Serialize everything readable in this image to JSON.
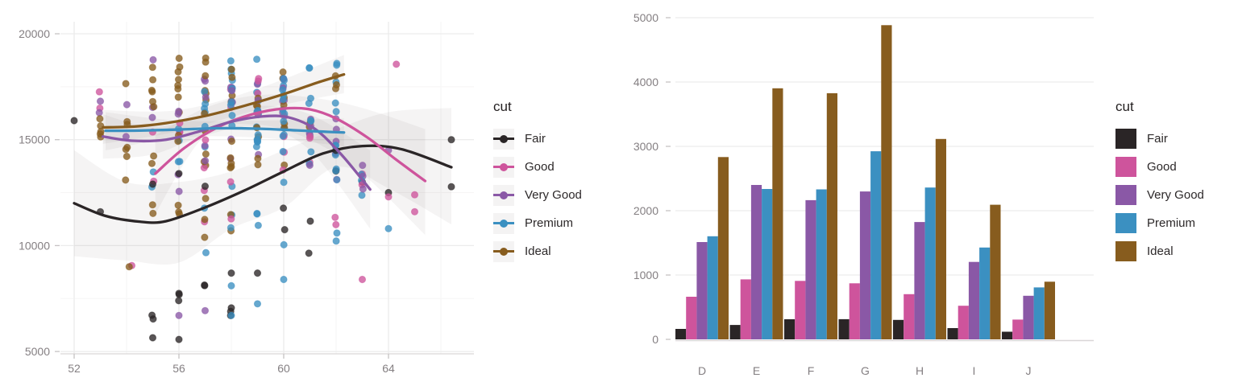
{
  "legend": {
    "title": "cut",
    "items": [
      {
        "label": "Fair",
        "color": "#2a2526"
      },
      {
        "label": "Good",
        "color": "#ce549c"
      },
      {
        "label": "Very Good",
        "color": "#8a58a6"
      },
      {
        "label": "Premium",
        "color": "#3b90c1"
      },
      {
        "label": "Ideal",
        "color": "#875c1e"
      }
    ]
  },
  "colors": {
    "grid": "#ececec",
    "grid_minor": "#f6f5f5",
    "axis_text": "#847f82",
    "axis_line": "#d9d6d7",
    "tick": "#c6c2c4",
    "ribbon": "#6b6668"
  },
  "chart_data": [
    {
      "type": "scatter",
      "title": "",
      "xlabel": "",
      "ylabel": "",
      "legend_title": "cut",
      "legend_position": "right",
      "grid": true,
      "x_ticks": [
        52,
        56,
        60,
        64
      ],
      "x_minor_ticks": [
        54,
        58,
        62,
        66
      ],
      "y_ticks": [
        5000,
        10000,
        15000,
        20000
      ],
      "y_minor_ticks": [
        7500,
        12500,
        17500
      ],
      "xlim": [
        51.5,
        66.9
      ],
      "ylim": [
        4800,
        20500
      ],
      "cuts": [
        "Fair",
        "Good",
        "Very Good",
        "Premium",
        "Ideal"
      ],
      "smooth_lines": {
        "Fair": [
          [
            52,
            12000
          ],
          [
            53.2,
            11400
          ],
          [
            54.5,
            11130
          ],
          [
            55.5,
            11150
          ],
          [
            57,
            11800
          ],
          [
            58.5,
            12600
          ],
          [
            60,
            13500
          ],
          [
            61.5,
            14350
          ],
          [
            63,
            14700
          ],
          [
            64.5,
            14550
          ],
          [
            66.4,
            13700
          ]
        ],
        "Good": [
          [
            55.1,
            13400
          ],
          [
            56.2,
            14600
          ],
          [
            57.5,
            15600
          ],
          [
            58.8,
            16200
          ],
          [
            60,
            16470
          ],
          [
            61,
            16430
          ],
          [
            62,
            16000
          ],
          [
            63.2,
            15100
          ],
          [
            64.3,
            14050
          ],
          [
            65.4,
            13050
          ]
        ],
        "Very Good": [
          [
            53.1,
            15150
          ],
          [
            54.2,
            14950
          ],
          [
            55.5,
            15000
          ],
          [
            56.8,
            15400
          ],
          [
            58,
            15850
          ],
          [
            59.2,
            16100
          ],
          [
            60.2,
            16050
          ],
          [
            61.2,
            15500
          ],
          [
            62.2,
            14300
          ],
          [
            63.3,
            12650
          ]
        ],
        "Premium": [
          [
            53.2,
            15420
          ],
          [
            54.5,
            15430
          ],
          [
            56,
            15480
          ],
          [
            57.5,
            15540
          ],
          [
            59,
            15520
          ],
          [
            60.5,
            15440
          ],
          [
            61.5,
            15380
          ],
          [
            62.3,
            15340
          ]
        ],
        "Ideal": [
          [
            53.1,
            15580
          ],
          [
            54.3,
            15620
          ],
          [
            55.5,
            15780
          ],
          [
            57,
            16120
          ],
          [
            58.5,
            16600
          ],
          [
            60,
            17150
          ],
          [
            61.3,
            17700
          ],
          [
            62.3,
            18080
          ]
        ]
      },
      "ribbons": [
        {
          "series": "Fair",
          "upper": [
            [
              52,
              14500
            ],
            [
              54,
              13000
            ],
            [
              56,
              13000
            ],
            [
              58,
              13500
            ],
            [
              60,
              14500
            ],
            [
              62,
              15500
            ],
            [
              64,
              16300
            ],
            [
              66.4,
              16500
            ]
          ],
          "lower": [
            [
              52,
              9500
            ],
            [
              54,
              9300
            ],
            [
              56,
              9200
            ],
            [
              58,
              10800
            ],
            [
              60,
              11800
            ],
            [
              62,
              13700
            ],
            [
              64,
              12700
            ],
            [
              66.4,
              11000
            ]
          ]
        },
        {
          "series": "Good",
          "upper": [
            [
              55.1,
              15200
            ],
            [
              57,
              16500
            ],
            [
              59,
              17100
            ],
            [
              61,
              17000
            ],
            [
              63,
              16500
            ],
            [
              65.4,
              15500
            ]
          ],
          "lower": [
            [
              55.1,
              11500
            ],
            [
              57,
              15200
            ],
            [
              59,
              15700
            ],
            [
              61,
              15000
            ],
            [
              63,
              13400
            ],
            [
              65.4,
              10500
            ]
          ]
        },
        {
          "series": "Very Good",
          "upper": [
            [
              53.1,
              16200
            ],
            [
              55,
              15600
            ],
            [
              57,
              16100
            ],
            [
              59,
              16600
            ],
            [
              61,
              16200
            ],
            [
              63.3,
              14500
            ]
          ],
          "lower": [
            [
              53.1,
              14100
            ],
            [
              55,
              14300
            ],
            [
              57,
              15200
            ],
            [
              59,
              15600
            ],
            [
              61,
              14500
            ],
            [
              63.3,
              10800
            ]
          ]
        },
        {
          "series": "Premium",
          "upper": [
            [
              53.2,
              16300
            ],
            [
              56,
              15900
            ],
            [
              59,
              15900
            ],
            [
              62.3,
              16000
            ]
          ],
          "lower": [
            [
              53.2,
              14500
            ],
            [
              56,
              15100
            ],
            [
              59,
              15100
            ],
            [
              62.3,
              14700
            ]
          ]
        },
        {
          "series": "Ideal",
          "upper": [
            [
              53.1,
              16400
            ],
            [
              56,
              16400
            ],
            [
              59,
              17400
            ],
            [
              62.3,
              19000
            ]
          ],
          "lower": [
            [
              53.1,
              14800
            ],
            [
              56,
              15400
            ],
            [
              59,
              16400
            ],
            [
              62.3,
              17200
            ]
          ]
        }
      ],
      "point_clusters": [
        [
          4,
          53,
          5,
          14800,
          16700
        ],
        [
          2,
          53,
          2,
          15100,
          17600
        ],
        [
          1,
          53,
          2,
          16400,
          17850
        ],
        [
          4,
          54,
          7,
          12800,
          18550
        ],
        [
          2,
          54,
          2,
          14000,
          17900
        ],
        [
          4,
          55,
          8,
          13800,
          18700
        ],
        [
          4,
          55,
          2,
          11000,
          12600
        ],
        [
          2,
          55,
          3,
          13800,
          18800
        ],
        [
          3,
          55,
          2,
          10400,
          13800
        ],
        [
          1,
          55,
          2,
          12400,
          16000
        ],
        [
          0,
          55,
          2,
          6450,
          6850
        ],
        [
          4,
          56,
          10,
          13800,
          18900
        ],
        [
          4,
          56,
          3,
          10500,
          13000
        ],
        [
          3,
          56,
          4,
          12500,
          17000
        ],
        [
          2,
          56,
          4,
          11000,
          18500
        ],
        [
          1,
          56,
          3,
          13000,
          18300
        ],
        [
          0,
          56,
          3,
          6800,
          7900
        ],
        [
          4,
          57,
          11,
          13500,
          18900
        ],
        [
          4,
          57,
          3,
          10000,
          12800
        ],
        [
          3,
          57,
          6,
          14000,
          18900
        ],
        [
          3,
          57,
          2,
          7900,
          12000
        ],
        [
          2,
          57,
          5,
          13500,
          18800
        ],
        [
          1,
          57,
          4,
          10500,
          18500
        ],
        [
          0,
          57,
          2,
          7900,
          8150
        ],
        [
          3,
          58,
          12,
          14200,
          18900
        ],
        [
          3,
          58,
          3,
          6300,
          13500
        ],
        [
          4,
          58,
          9,
          13500,
          18800
        ],
        [
          4,
          58,
          2,
          10500,
          12500
        ],
        [
          2,
          58,
          6,
          13800,
          18900
        ],
        [
          1,
          58,
          4,
          12500,
          18700
        ],
        [
          1,
          58,
          1,
          11000,
          11300
        ],
        [
          0,
          58,
          3,
          6200,
          7100
        ],
        [
          3,
          59,
          14,
          14000,
          18900
        ],
        [
          3,
          59,
          3,
          9500,
          13500
        ],
        [
          4,
          59,
          8,
          13800,
          18600
        ],
        [
          2,
          59,
          6,
          14000,
          18800
        ],
        [
          1,
          59,
          4,
          12500,
          18000
        ],
        [
          3,
          60,
          13,
          14000,
          18900
        ],
        [
          3,
          60,
          2,
          9800,
          13000
        ],
        [
          4,
          60,
          7,
          13800,
          18300
        ],
        [
          2,
          60,
          5,
          13500,
          18800
        ],
        [
          1,
          60,
          4,
          12800,
          18500
        ],
        [
          0,
          60,
          2,
          8900,
          13200
        ],
        [
          3,
          61,
          9,
          13000,
          18700
        ],
        [
          2,
          61,
          4,
          13000,
          17500
        ],
        [
          1,
          61,
          3,
          13500,
          16000
        ],
        [
          0,
          61,
          2,
          8900,
          14800
        ],
        [
          4,
          61,
          2,
          15500,
          17800
        ],
        [
          3,
          62,
          11,
          12500,
          18900
        ],
        [
          3,
          62,
          2,
          9000,
          10800
        ],
        [
          4,
          62,
          3,
          17000,
          18100
        ],
        [
          2,
          62,
          4,
          12000,
          16000
        ],
        [
          1,
          62,
          3,
          10800,
          15200
        ],
        [
          0,
          62,
          2,
          13000,
          14500
        ],
        [
          3,
          63,
          3,
          10800,
          13500
        ],
        [
          2,
          63,
          3,
          12300,
          14000
        ],
        [
          1,
          63,
          2,
          12800,
          14200
        ]
      ],
      "point_singles": [
        [
          0,
          52,
          15900
        ],
        [
          0,
          53,
          11600
        ],
        [
          1,
          54.2,
          9060
        ],
        [
          4,
          54.1,
          9000
        ],
        [
          0,
          55,
          12900
        ],
        [
          0,
          55,
          5650
        ],
        [
          0,
          56,
          13400
        ],
        [
          0,
          56,
          5570
        ],
        [
          2,
          56,
          6700
        ],
        [
          0,
          57,
          12800
        ],
        [
          2,
          57,
          6930
        ],
        [
          3,
          58,
          8100
        ],
        [
          3,
          58,
          6700
        ],
        [
          0,
          58,
          8700
        ],
        [
          3,
          59,
          7250
        ],
        [
          0,
          59,
          8700
        ],
        [
          3,
          60,
          8400
        ],
        [
          1,
          63,
          8400
        ],
        [
          0,
          63,
          13000
        ],
        [
          1,
          64.3,
          18560
        ],
        [
          1,
          64,
          12300
        ],
        [
          3,
          64,
          10800
        ],
        [
          0,
          64,
          12500
        ],
        [
          2,
          64,
          14500
        ],
        [
          1,
          65,
          11600
        ],
        [
          1,
          65,
          12400
        ],
        [
          0,
          66.4,
          15000
        ],
        [
          0,
          66.4,
          12780
        ]
      ]
    },
    {
      "type": "bar",
      "title": "",
      "xlabel": "",
      "ylabel": "",
      "legend_title": "cut",
      "legend_position": "right",
      "grid": true,
      "categories": [
        "D",
        "E",
        "F",
        "G",
        "H",
        "I",
        "J"
      ],
      "series": [
        {
          "name": "Fair",
          "values": [
            163,
            224,
            312,
            314,
            303,
            175,
            119
          ]
        },
        {
          "name": "Good",
          "values": [
            662,
            933,
            909,
            871,
            702,
            522,
            307
          ]
        },
        {
          "name": "Very Good",
          "values": [
            1513,
            2400,
            2164,
            2299,
            1824,
            1204,
            678
          ]
        },
        {
          "name": "Premium",
          "values": [
            1603,
            2337,
            2331,
            2924,
            2360,
            1428,
            808
          ]
        },
        {
          "name": "Ideal",
          "values": [
            2834,
            3903,
            3826,
            4884,
            3115,
            2093,
            896
          ]
        }
      ],
      "y_ticks": [
        0,
        1000,
        2000,
        3000,
        4000,
        5000
      ],
      "ylim": [
        0,
        5000
      ]
    }
  ]
}
